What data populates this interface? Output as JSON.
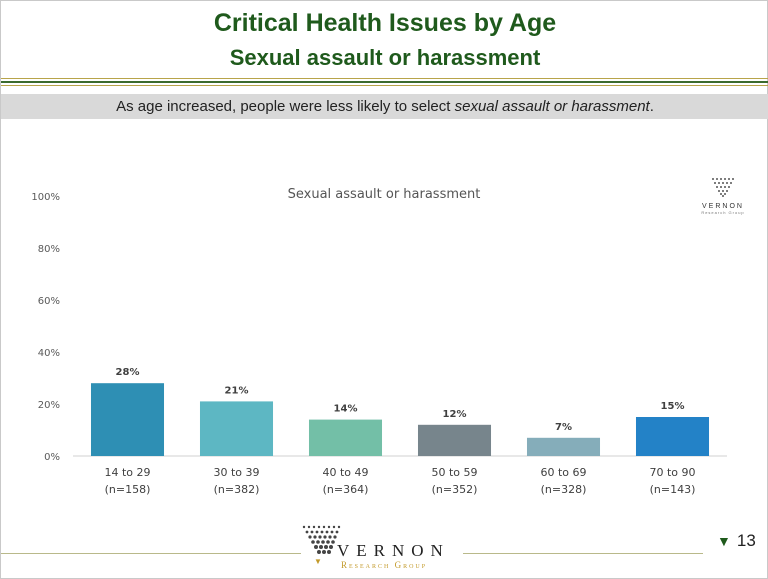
{
  "slide": {
    "title": "Critical Health Issues by Age",
    "subtitle": "Sexual assault or harassment",
    "finding_prefix": "As age increased, people were less likely to select ",
    "finding_emphasis": "sexual assault or harassment",
    "finding_suffix": ".",
    "page_number": "13",
    "page_arrow_icon": "down-triangle-icon"
  },
  "logo": {
    "wordmark": "VERNON",
    "tagline": "Research Group"
  },
  "colors": {
    "title": "#1f5a1c",
    "rule_gold": "#b8a44a",
    "rule_green": "#3b6b2e",
    "bar_colors": [
      "#2e8fb4",
      "#5db7c3",
      "#73bfa7",
      "#77858c",
      "#85adba",
      "#2382c7"
    ]
  },
  "chart_data": {
    "type": "bar",
    "title": "Sexual assault or harassment",
    "categories": [
      "14 to 29",
      "30 to 39",
      "40 to 49",
      "50 to 59",
      "60 to 69",
      "70 to 90"
    ],
    "category_n": [
      "(n=158)",
      "(n=382)",
      "(n=364)",
      "(n=352)",
      "(n=328)",
      "(n=143)"
    ],
    "values": [
      28,
      21,
      14,
      12,
      7,
      15
    ],
    "value_labels": [
      "28%",
      "21%",
      "14%",
      "12%",
      "7%",
      "15%"
    ],
    "yticks": [
      "0%",
      "20%",
      "40%",
      "60%",
      "80%",
      "100%"
    ],
    "ylim": [
      0,
      100
    ],
    "grid": false,
    "legend": "none"
  }
}
